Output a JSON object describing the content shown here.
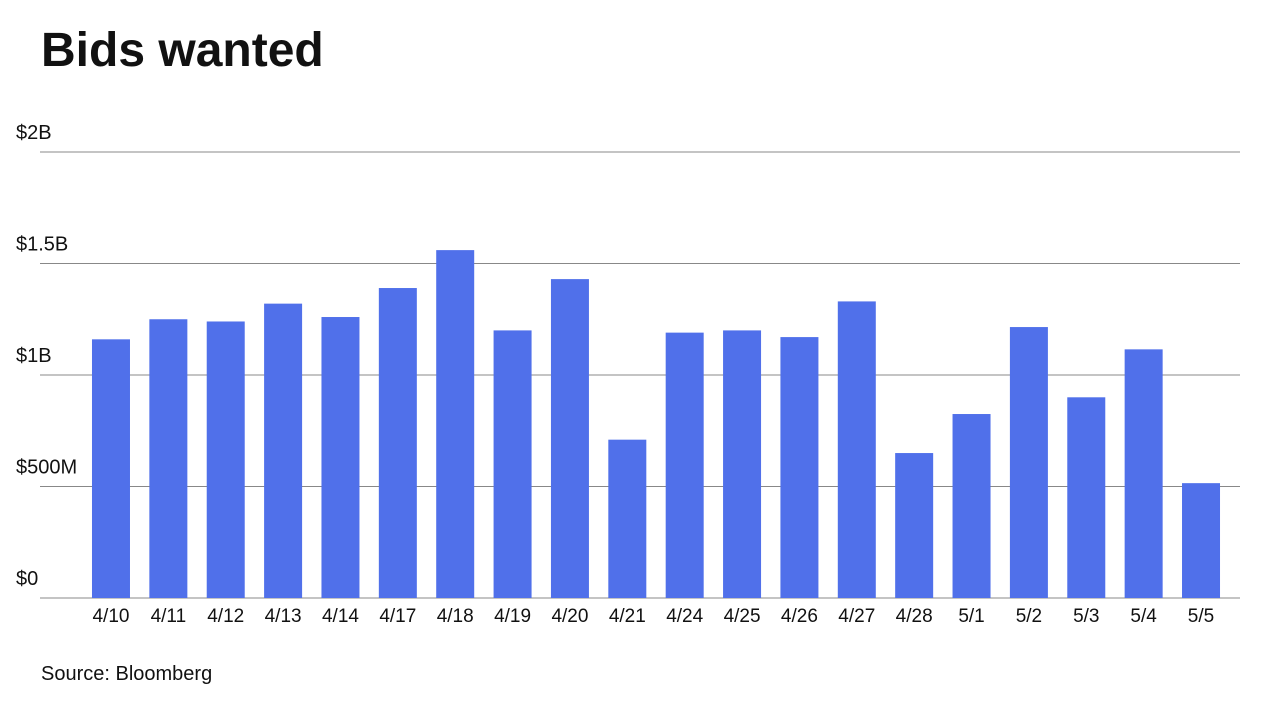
{
  "chart_data": {
    "type": "bar",
    "title": "Bids wanted",
    "source": "Source: Bloomberg",
    "categories": [
      "4/10",
      "4/11",
      "4/12",
      "4/13",
      "4/14",
      "4/17",
      "4/18",
      "4/19",
      "4/20",
      "4/21",
      "4/24",
      "4/25",
      "4/26",
      "4/27",
      "4/28",
      "5/1",
      "5/2",
      "5/3",
      "5/4",
      "5/5"
    ],
    "values": [
      1160000000,
      1250000000,
      1240000000,
      1320000000,
      1260000000,
      1390000000,
      1560000000,
      1200000000,
      1430000000,
      710000000,
      1190000000,
      1200000000,
      1170000000,
      1330000000,
      650000000,
      825000000,
      1215000000,
      900000000,
      1115000000,
      515000000
    ],
    "color": "#5070ea",
    "ylim": [
      0,
      2000000000
    ],
    "yticks": [
      {
        "value": 0,
        "label": "$0"
      },
      {
        "value": 500000000,
        "label": "$500M"
      },
      {
        "value": 1000000000,
        "label": "$1B"
      },
      {
        "value": 1500000000,
        "label": "$1.5B"
      },
      {
        "value": 2000000000,
        "label": "$2B"
      }
    ],
    "grid": true
  }
}
